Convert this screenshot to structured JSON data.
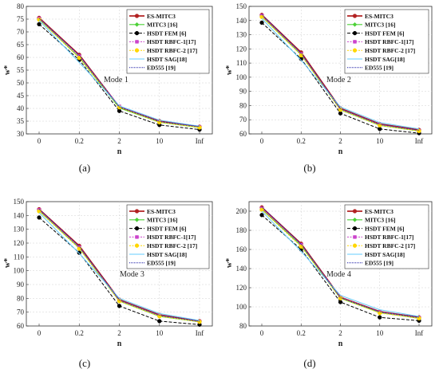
{
  "chart_data": [
    {
      "type": "line",
      "panel_label": "(a)",
      "annotation": "Mode 1",
      "xlabel": "n",
      "ylabel": "w*",
      "categories": [
        "0",
        "0.2",
        "2",
        "10",
        "Inf"
      ],
      "ylim": [
        30,
        80
      ],
      "yticks": [
        30,
        35,
        40,
        45,
        50,
        55,
        60,
        65,
        70,
        75,
        80
      ],
      "grid": true,
      "legend_position": "top-right",
      "series": [
        {
          "name": "ES-MITC3",
          "values": [
            75.5,
            61.0,
            40.5,
            35.0,
            32.8
          ]
        },
        {
          "name": "MITC3 [16]",
          "values": [
            75.0,
            60.0,
            40.2,
            34.6,
            32.5
          ]
        },
        {
          "name": "HSDT FEM [6]",
          "values": [
            73.0,
            59.0,
            39.0,
            33.5,
            31.7
          ]
        },
        {
          "name": "HSDT RBFC-1[17]",
          "values": [
            75.2,
            60.5,
            40.8,
            34.8,
            32.7
          ]
        },
        {
          "name": "HSDT RBFC-2 [17]",
          "values": [
            74.8,
            59.8,
            40.4,
            34.5,
            32.5
          ]
        },
        {
          "name": "HSDT SAG[18]",
          "values": [
            74.5,
            58.0,
            41.0,
            35.4,
            33.0
          ]
        },
        {
          "name": "ED555 [19]",
          "values": [
            75.3,
            60.8,
            40.6,
            34.9,
            32.9
          ]
        }
      ]
    },
    {
      "type": "line",
      "panel_label": "(b)",
      "annotation": "Mode 2",
      "xlabel": "n",
      "ylabel": "w*",
      "categories": [
        "0",
        "0.2",
        "2",
        "10",
        "Inf"
      ],
      "ylim": [
        60,
        150
      ],
      "yticks": [
        60,
        70,
        80,
        90,
        100,
        110,
        120,
        130,
        140,
        150
      ],
      "grid": true,
      "legend_position": "top-right",
      "series": [
        {
          "name": "ES-MITC3",
          "values": [
            144.0,
            117.5,
            78.0,
            67.0,
            62.8
          ]
        },
        {
          "name": "MITC3 [16]",
          "values": [
            143.0,
            116.0,
            77.0,
            66.0,
            62.0
          ]
        },
        {
          "name": "HSDT FEM [6]",
          "values": [
            138.5,
            113.0,
            74.5,
            63.5,
            60.5
          ]
        },
        {
          "name": "HSDT RBFC-1[17]",
          "values": [
            143.5,
            116.5,
            77.5,
            66.5,
            62.3
          ]
        },
        {
          "name": "HSDT RBFC-2 [17]",
          "values": [
            142.5,
            115.5,
            77.0,
            66.0,
            62.0
          ]
        },
        {
          "name": "HSDT SAG[18]",
          "values": [
            141.5,
            112.0,
            79.0,
            68.0,
            63.5
          ]
        },
        {
          "name": "ED555 [19]",
          "values": [
            144.2,
            117.0,
            77.8,
            66.8,
            62.6
          ]
        }
      ]
    },
    {
      "type": "line",
      "panel_label": "(c)",
      "annotation": "Mode 3",
      "xlabel": "n",
      "ylabel": "w*",
      "categories": [
        "0",
        "0.2",
        "2",
        "10",
        "Inf"
      ],
      "ylim": [
        60,
        150
      ],
      "yticks": [
        60,
        70,
        80,
        90,
        100,
        110,
        120,
        130,
        140,
        150
      ],
      "grid": true,
      "legend_position": "top-right",
      "series": [
        {
          "name": "ES-MITC3",
          "values": [
            144.5,
            118.0,
            79.0,
            68.0,
            63.5
          ]
        },
        {
          "name": "MITC3 [16]",
          "values": [
            143.5,
            116.5,
            78.0,
            67.0,
            63.0
          ]
        },
        {
          "name": "HSDT FEM [6]",
          "values": [
            138.5,
            113.0,
            74.5,
            63.5,
            61.0
          ]
        },
        {
          "name": "HSDT RBFC-1[17]",
          "values": [
            144.0,
            117.0,
            78.5,
            67.5,
            63.2
          ]
        },
        {
          "name": "HSDT RBFC-2 [17]",
          "values": [
            143.0,
            116.0,
            78.0,
            67.0,
            63.0
          ]
        },
        {
          "name": "HSDT SAG[18]",
          "values": [
            142.0,
            112.5,
            80.0,
            69.0,
            64.0
          ]
        },
        {
          "name": "ED555 [19]",
          "values": [
            144.6,
            117.5,
            78.8,
            67.8,
            63.4
          ]
        }
      ]
    },
    {
      "type": "line",
      "panel_label": "(d)",
      "annotation": "Mode 4",
      "xlabel": "n",
      "ylabel": "w*",
      "categories": [
        "0",
        "0.2",
        "2",
        "10",
        "Inf"
      ],
      "ylim": [
        80,
        210
      ],
      "yticks": [
        80,
        100,
        120,
        140,
        160,
        180,
        200
      ],
      "grid": true,
      "legend_position": "top-right",
      "series": [
        {
          "name": "ES-MITC3",
          "values": [
            204.0,
            166.0,
            110.0,
            95.0,
            89.0
          ]
        },
        {
          "name": "MITC3 [16]",
          "values": [
            202.0,
            164.0,
            109.0,
            94.0,
            88.0
          ]
        },
        {
          "name": "HSDT FEM [6]",
          "values": [
            196.0,
            160.0,
            105.0,
            89.0,
            85.5
          ]
        },
        {
          "name": "HSDT RBFC-1[17]",
          "values": [
            203.0,
            165.0,
            110.0,
            94.5,
            88.5
          ]
        },
        {
          "name": "HSDT RBFC-2 [17]",
          "values": [
            201.5,
            163.0,
            109.0,
            93.5,
            88.0
          ]
        },
        {
          "name": "HSDT SAG[18]",
          "values": [
            200.0,
            158.0,
            112.0,
            97.0,
            90.0
          ]
        },
        {
          "name": "ED555 [19]",
          "values": [
            204.5,
            165.5,
            109.5,
            94.8,
            89.2
          ]
        }
      ]
    }
  ],
  "series_styles": [
    {
      "color": "#b22222",
      "dash": "",
      "marker": "circle",
      "width": 1.8
    },
    {
      "color": "#4cd137",
      "dash": "",
      "marker": "diamond",
      "width": 1.2
    },
    {
      "color": "#000000",
      "dash": "4,2",
      "marker": "circle",
      "width": 1.0
    },
    {
      "color": "#cc44cc",
      "dash": "2,1.5",
      "marker": "square",
      "width": 1.0
    },
    {
      "color": "#ffd700",
      "dash": "2,1.5",
      "marker": "circle",
      "width": 1.0
    },
    {
      "color": "#66ccff",
      "dash": "",
      "marker": "none",
      "width": 1.0
    },
    {
      "color": "#1a1aa6",
      "dash": "1,1",
      "marker": "none",
      "width": 1.0
    }
  ]
}
